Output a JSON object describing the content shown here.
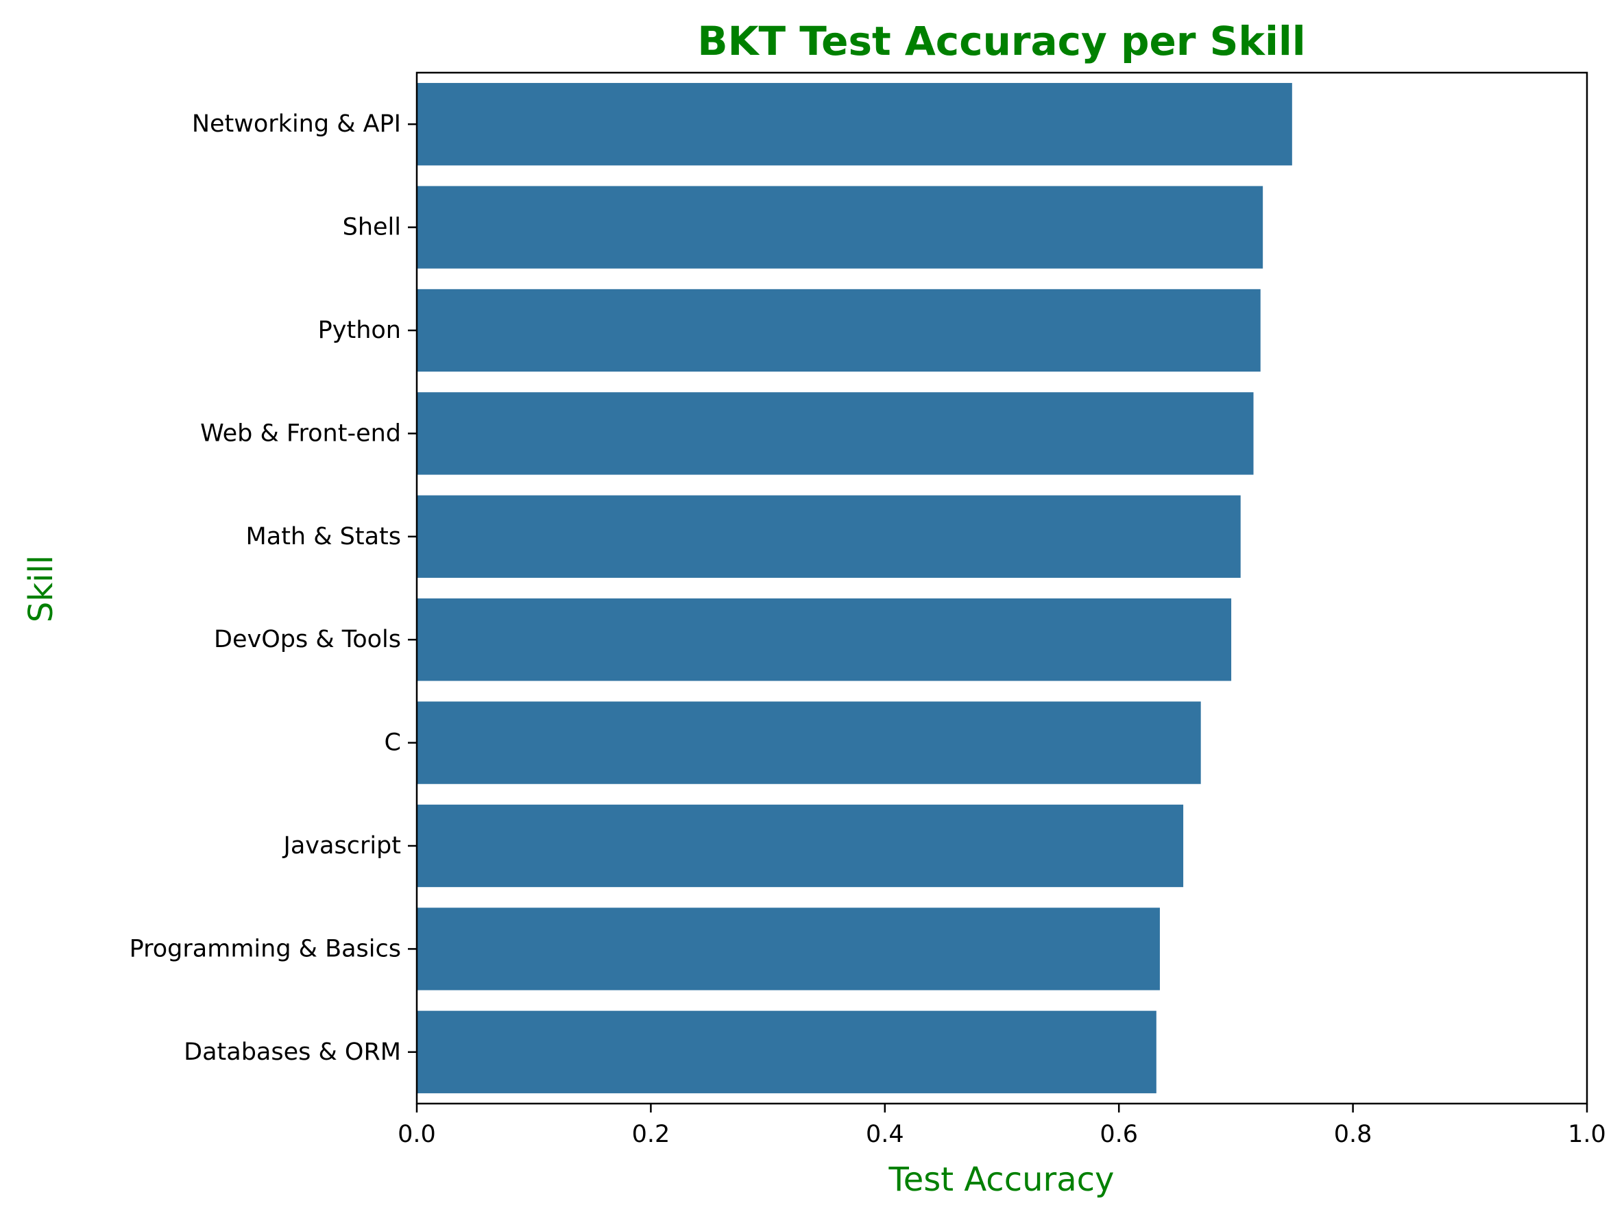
{
  "chart_data": {
    "type": "bar",
    "orientation": "horizontal",
    "title": "BKT Test Accuracy per Skill",
    "xlabel": "Test Accuracy",
    "ylabel": "Skill",
    "xlim": [
      0,
      1
    ],
    "xticks": [
      "0.0",
      "0.2",
      "0.4",
      "0.6",
      "0.8",
      "1.0"
    ],
    "categories": [
      "Networking & API",
      "Shell",
      "Python",
      "Web & Front-end",
      "Math & Stats",
      "DevOps & Tools",
      "C",
      "Javascript",
      "Programming & Basics",
      "Databases & ORM"
    ],
    "values": [
      0.748,
      0.723,
      0.721,
      0.715,
      0.704,
      0.696,
      0.67,
      0.655,
      0.635,
      0.632
    ],
    "grid": false,
    "legend": "none",
    "colors": {
      "bar": "#3274a1",
      "title": "#008000",
      "axis_title": "#008000",
      "axis": "#000000"
    }
  }
}
